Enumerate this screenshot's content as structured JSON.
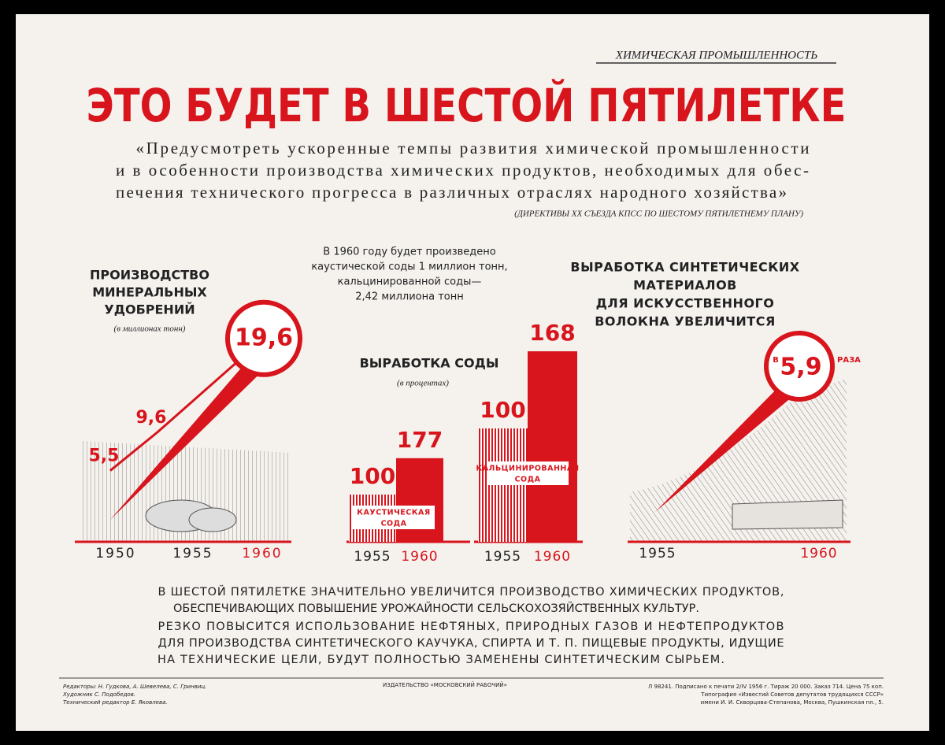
{
  "header": {
    "rubric": "ХИМИЧЕСКАЯ ПРОМЫШЛЕННОСТЬ",
    "title": "ЭТО БУДЕТ В ШЕСТОЙ ПЯТИЛЕТКЕ",
    "quote": [
      "«Предусмотреть ускоренные темпы развития химической промышленности",
      "и в особенности производства химических продуктов, необходимых для обес-",
      "печения технического прогресса в различных отраслях народного хозяйства»"
    ],
    "source": "(ДИРЕКТИВЫ ХХ СЪЕЗДА КПСС ПО ШЕСТОМУ ПЯТИЛЕТНЕМУ ПЛАНУ)"
  },
  "chart_data": [
    {
      "type": "line",
      "title": [
        "ПРОИЗВОДСТВО",
        "МИНЕРАЛЬНЫХ",
        "УДОБРЕНИЙ"
      ],
      "subtitle": "(в миллионах тонн)",
      "categories": [
        "1950",
        "1955",
        "1960"
      ],
      "values": [
        5.5,
        9.6,
        19.6
      ],
      "value_labels": [
        "5,5",
        "9,6",
        "19,6"
      ],
      "color": "#d8141c"
    },
    {
      "type": "bar",
      "annotation": [
        "В 1960 году будет произведено",
        "каустической соды 1 миллион тонн,",
        "кальцинированной соды—",
        "2,42 миллиона тонн"
      ],
      "title": "ВЫРАБОТКА СОДЫ",
      "subtitle": "(в процентах)",
      "color": "#d8141c",
      "groups": [
        {
          "name": [
            "КАУСТИЧЕСКАЯ",
            "СОДА"
          ],
          "categories": [
            "1955",
            "1960"
          ],
          "values": [
            100,
            177
          ]
        },
        {
          "name": [
            "КАЛЬЦИНИРОВАННАЯ",
            "СОДА"
          ],
          "categories": [
            "1955",
            "1960"
          ],
          "values": [
            100,
            168
          ]
        }
      ]
    },
    {
      "type": "multiplier",
      "title": [
        "ВЫРАБОТКА СИНТЕТИЧЕСКИХ",
        "МАТЕРИАЛОВ",
        "ДЛЯ ИСКУССТВЕННОГО",
        "ВОЛОКНА УВЕЛИЧИТСЯ"
      ],
      "categories": [
        "1955",
        "1960"
      ],
      "prefix": "В",
      "value": 5.9,
      "value_label": "5,9",
      "suffix": "РАЗА",
      "color": "#d8141c"
    }
  ],
  "body": [
    [
      "В ШЕСТОЙ ПЯТИЛЕТКЕ ЗНАЧИТЕЛЬНО УВЕЛИЧИТСЯ ПРОИЗВОДСТВО ХИМИЧЕСКИХ ПРОДУКТОВ,",
      "ОБЕСПЕЧИВАЮЩИХ ПОВЫШЕНИЕ УРОЖАЙНОСТИ СЕЛЬСКОХОЗЯЙСТВЕННЫХ КУЛЬТУР."
    ],
    [
      "РЕЗКО ПОВЫСИТСЯ ИСПОЛЬЗОВАНИЕ НЕФТЯНЫХ, ПРИРОДНЫХ ГАЗОВ И НЕФТЕПРОДУКТОВ",
      "ДЛЯ ПРОИЗВОДСТВА СИНТЕТИЧЕСКОГО КАУЧУКА, СПИРТА И Т. П. ПИЩЕВЫЕ ПРОДУКТЫ, ИДУЩИЕ",
      "НА ТЕХНИЧЕСКИЕ ЦЕЛИ, БУДУТ ПОЛНОСТЬЮ ЗАМЕНЕНЫ СИНТЕТИЧЕСКИМ СЫРЬЕМ."
    ]
  ],
  "footer": {
    "left": [
      "Редакторы: Н. Гудкова, А. Шевелева, С. Гринвиц.",
      "Художник С. Подобедов.",
      "Технический редактор Е. Яковлева."
    ],
    "center": "ИЗДАТЕЛЬСТВО «МОСКОВСКИЙ РАБОЧИЙ»",
    "right": [
      "Л 98241. Подписано к печати 2/IV 1956 г. Тираж 20 000. Заказ 714. Цена 75 коп.",
      "Типография «Известий Советов депутатов трудящихся СССР»",
      "имени И. И. Скворцова-Степанова, Москва, Пушкинская пл., 5."
    ]
  }
}
